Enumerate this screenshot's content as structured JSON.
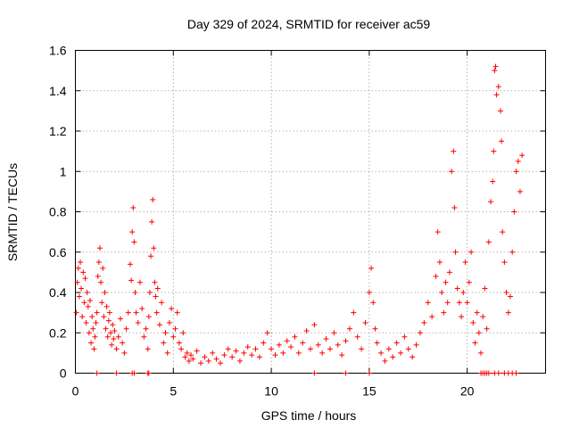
{
  "chart_data": {
    "type": "scatter",
    "title": "Day 329 of 2024, SRMTID for receiver ac59",
    "xlabel": "GPS time / hours",
    "ylabel": "SRMTID / TECUs",
    "xlim": [
      0,
      24
    ],
    "ylim": [
      0,
      1.6
    ],
    "x_ticks": [
      0,
      5,
      10,
      15,
      20
    ],
    "x_tick_labels": [
      "0",
      "5",
      "10",
      "15",
      "20"
    ],
    "y_ticks": [
      0,
      0.2,
      0.4,
      0.6,
      0.8,
      1.0,
      1.2,
      1.4,
      1.6
    ],
    "y_tick_labels": [
      "0",
      "0.2",
      "0.4",
      "0.6",
      "0.8",
      "1",
      "1.2",
      "1.4",
      "1.6"
    ],
    "grid": true,
    "marker": "+",
    "color": "#ff0000",
    "series": [
      {
        "name": "SRMTID",
        "points": [
          [
            0.05,
            0.3
          ],
          [
            0.1,
            0.45
          ],
          [
            0.15,
            0.52
          ],
          [
            0.2,
            0.38
          ],
          [
            0.25,
            0.55
          ],
          [
            0.3,
            0.42
          ],
          [
            0.35,
            0.28
          ],
          [
            0.4,
            0.5
          ],
          [
            0.45,
            0.35
          ],
          [
            0.5,
            0.47
          ],
          [
            0.55,
            0.25
          ],
          [
            0.6,
            0.4
          ],
          [
            0.65,
            0.33
          ],
          [
            0.7,
            0.2
          ],
          [
            0.75,
            0.36
          ],
          [
            0.8,
            0.15
          ],
          [
            0.85,
            0.28
          ],
          [
            0.9,
            0.22
          ],
          [
            0.95,
            0.12
          ],
          [
            1.0,
            0.18
          ],
          [
            1.05,
            0.25
          ],
          [
            1.1,
            0.3
          ],
          [
            1.15,
            0.48
          ],
          [
            1.2,
            0.55
          ],
          [
            1.25,
            0.62
          ],
          [
            1.3,
            0.45
          ],
          [
            1.35,
            0.35
          ],
          [
            1.4,
            0.52
          ],
          [
            1.45,
            0.28
          ],
          [
            1.5,
            0.4
          ],
          [
            1.55,
            0.22
          ],
          [
            1.6,
            0.33
          ],
          [
            1.65,
            0.18
          ],
          [
            1.7,
            0.26
          ],
          [
            1.75,
            0.3
          ],
          [
            1.8,
            0.2
          ],
          [
            1.85,
            0.14
          ],
          [
            1.9,
            0.24
          ],
          [
            1.95,
            0.17
          ],
          [
            2.0,
            0.21
          ],
          [
            2.1,
            0.12
          ],
          [
            2.2,
            0.18
          ],
          [
            2.3,
            0.27
          ],
          [
            2.4,
            0.15
          ],
          [
            2.5,
            0.1
          ],
          [
            2.6,
            0.22
          ],
          [
            2.7,
            0.3
          ],
          [
            2.8,
            0.54
          ],
          [
            2.85,
            0.46
          ],
          [
            2.9,
            0.7
          ],
          [
            2.95,
            0.82
          ],
          [
            3.0,
            0.65
          ],
          [
            3.05,
            0.4
          ],
          [
            3.1,
            0.3
          ],
          [
            3.2,
            0.25
          ],
          [
            3.3,
            0.45
          ],
          [
            3.4,
            0.32
          ],
          [
            3.5,
            0.18
          ],
          [
            3.6,
            0.22
          ],
          [
            3.7,
            0.12
          ],
          [
            3.75,
            0.28
          ],
          [
            3.8,
            0.4
          ],
          [
            3.85,
            0.58
          ],
          [
            3.9,
            0.75
          ],
          [
            3.95,
            0.86
          ],
          [
            4.0,
            0.62
          ],
          [
            4.05,
            0.45
          ],
          [
            4.1,
            0.38
          ],
          [
            4.15,
            0.3
          ],
          [
            4.2,
            0.42
          ],
          [
            4.3,
            0.24
          ],
          [
            4.4,
            0.35
          ],
          [
            4.5,
            0.15
          ],
          [
            4.6,
            0.2
          ],
          [
            4.7,
            0.1
          ],
          [
            4.8,
            0.25
          ],
          [
            4.9,
            0.32
          ],
          [
            5.0,
            0.18
          ],
          [
            5.1,
            0.22
          ],
          [
            5.2,
            0.3
          ],
          [
            5.3,
            0.15
          ],
          [
            5.4,
            0.12
          ],
          [
            5.5,
            0.2
          ],
          [
            5.6,
            0.08
          ],
          [
            5.7,
            0.1
          ],
          [
            5.8,
            0.06
          ],
          [
            5.9,
            0.09
          ],
          [
            6.0,
            0.07
          ],
          [
            6.2,
            0.11
          ],
          [
            6.4,
            0.05
          ],
          [
            6.6,
            0.08
          ],
          [
            6.8,
            0.06
          ],
          [
            7.0,
            0.1
          ],
          [
            7.2,
            0.07
          ],
          [
            7.4,
            0.05
          ],
          [
            7.6,
            0.09
          ],
          [
            7.8,
            0.12
          ],
          [
            8.0,
            0.08
          ],
          [
            8.2,
            0.11
          ],
          [
            8.4,
            0.06
          ],
          [
            8.6,
            0.1
          ],
          [
            8.8,
            0.13
          ],
          [
            9.0,
            0.09
          ],
          [
            9.2,
            0.12
          ],
          [
            9.4,
            0.08
          ],
          [
            9.6,
            0.15
          ],
          [
            9.8,
            0.2
          ],
          [
            10.0,
            0.12
          ],
          [
            10.2,
            0.09
          ],
          [
            10.4,
            0.14
          ],
          [
            10.6,
            0.1
          ],
          [
            10.8,
            0.16
          ],
          [
            11.0,
            0.13
          ],
          [
            11.2,
            0.18
          ],
          [
            11.4,
            0.1
          ],
          [
            11.6,
            0.15
          ],
          [
            11.8,
            0.21
          ],
          [
            12.0,
            0.12
          ],
          [
            12.2,
            0.24
          ],
          [
            12.4,
            0.14
          ],
          [
            12.6,
            0.1
          ],
          [
            12.8,
            0.17
          ],
          [
            13.0,
            0.12
          ],
          [
            13.2,
            0.2
          ],
          [
            13.4,
            0.14
          ],
          [
            13.6,
            0.09
          ],
          [
            13.8,
            0.16
          ],
          [
            14.0,
            0.22
          ],
          [
            14.2,
            0.3
          ],
          [
            14.4,
            0.18
          ],
          [
            14.6,
            0.12
          ],
          [
            14.8,
            0.25
          ],
          [
            15.0,
            0.4
          ],
          [
            15.1,
            0.52
          ],
          [
            15.2,
            0.35
          ],
          [
            15.3,
            0.22
          ],
          [
            15.4,
            0.15
          ],
          [
            15.6,
            0.1
          ],
          [
            15.8,
            0.06
          ],
          [
            16.0,
            0.12
          ],
          [
            16.2,
            0.08
          ],
          [
            16.4,
            0.15
          ],
          [
            16.6,
            0.1
          ],
          [
            16.8,
            0.18
          ],
          [
            17.0,
            0.12
          ],
          [
            17.2,
            0.08
          ],
          [
            17.4,
            0.14
          ],
          [
            17.6,
            0.2
          ],
          [
            17.8,
            0.25
          ],
          [
            18.0,
            0.35
          ],
          [
            18.2,
            0.28
          ],
          [
            18.4,
            0.48
          ],
          [
            18.5,
            0.7
          ],
          [
            18.6,
            0.55
          ],
          [
            18.7,
            0.4
          ],
          [
            18.8,
            0.3
          ],
          [
            18.9,
            0.45
          ],
          [
            19.0,
            0.35
          ],
          [
            19.1,
            0.5
          ],
          [
            19.2,
            1.0
          ],
          [
            19.3,
            1.1
          ],
          [
            19.35,
            0.82
          ],
          [
            19.4,
            0.6
          ],
          [
            19.5,
            0.42
          ],
          [
            19.6,
            0.35
          ],
          [
            19.7,
            0.28
          ],
          [
            19.8,
            0.4
          ],
          [
            19.9,
            0.55
          ],
          [
            20.0,
            0.35
          ],
          [
            20.1,
            0.45
          ],
          [
            20.2,
            0.6
          ],
          [
            20.3,
            0.25
          ],
          [
            20.4,
            0.15
          ],
          [
            20.5,
            0.3
          ],
          [
            20.6,
            0.2
          ],
          [
            20.7,
            0.1
          ],
          [
            20.8,
            0.28
          ],
          [
            20.9,
            0.42
          ],
          [
            21.0,
            0.22
          ],
          [
            21.1,
            0.65
          ],
          [
            21.2,
            0.85
          ],
          [
            21.3,
            0.95
          ],
          [
            21.35,
            1.1
          ],
          [
            21.4,
            1.5
          ],
          [
            21.45,
            1.52
          ],
          [
            21.5,
            1.38
          ],
          [
            21.6,
            1.42
          ],
          [
            21.7,
            1.3
          ],
          [
            21.75,
            1.15
          ],
          [
            21.8,
            0.7
          ],
          [
            21.9,
            0.55
          ],
          [
            22.0,
            0.4
          ],
          [
            22.1,
            0.3
          ],
          [
            22.2,
            0.38
          ],
          [
            22.3,
            0.6
          ],
          [
            22.4,
            0.8
          ],
          [
            22.5,
            1.0
          ],
          [
            22.6,
            1.05
          ],
          [
            22.7,
            0.9
          ],
          [
            22.8,
            1.08
          ]
        ]
      }
    ],
    "zero_markers_x": [
      1.1,
      2.1,
      2.9,
      3.0,
      3.7,
      3.75,
      12.2,
      13.8,
      15.0,
      20.7,
      20.8,
      20.9,
      21.0,
      21.1,
      21.4,
      21.6,
      21.9,
      22.1,
      22.3,
      22.5
    ]
  }
}
